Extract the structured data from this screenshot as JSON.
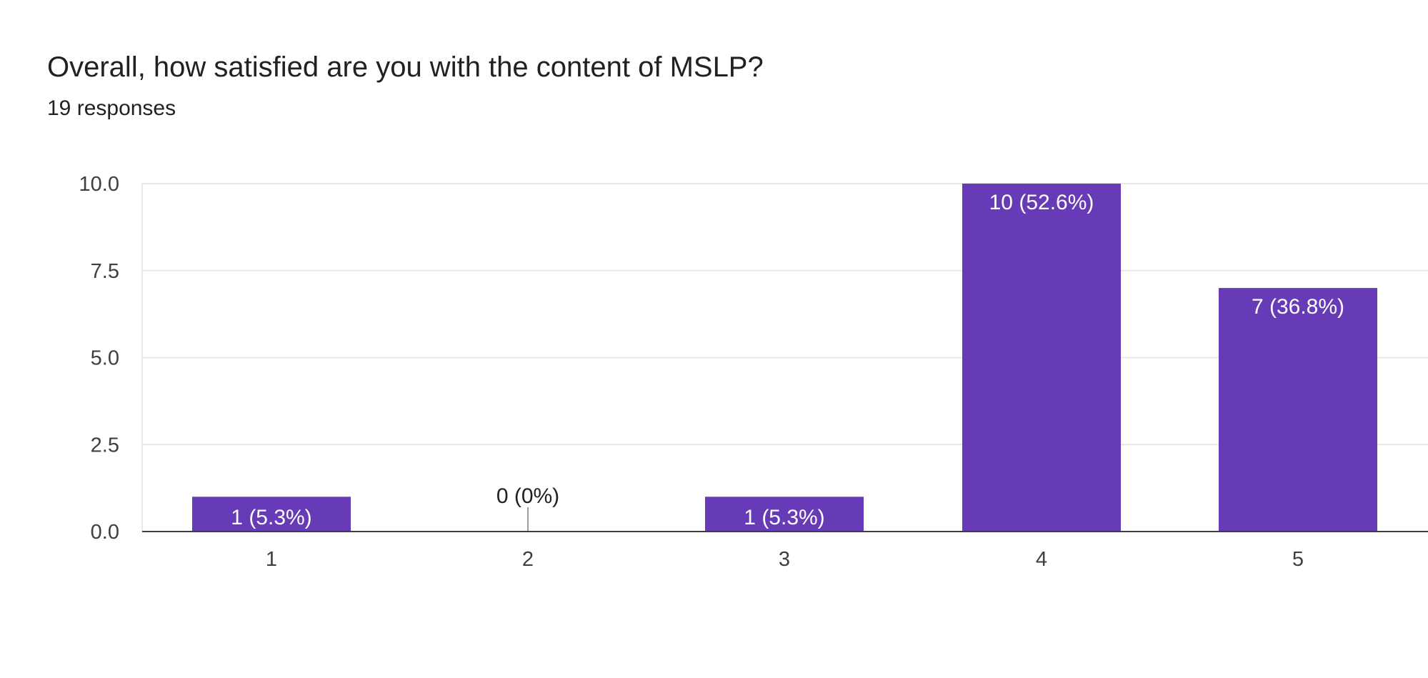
{
  "question": {
    "title": "Overall, how satisfied are you with the content of MSLP?",
    "responses": "19 responses"
  },
  "colors": {
    "bar": "#673ab7",
    "grid": "#e8e8e8",
    "axis": "#3c4043",
    "label_inside": "#ffffff",
    "label_outside": "#202124"
  },
  "chart_data": {
    "type": "bar",
    "categories": [
      "1",
      "2",
      "3",
      "4",
      "5"
    ],
    "values": [
      1,
      0,
      1,
      10,
      7
    ],
    "data_labels": [
      "1 (5.3%)",
      "0 (0%)",
      "1 (5.3%)",
      "10 (52.6%)",
      "7 (36.8%)"
    ],
    "ylim": [
      0,
      10
    ],
    "yticks": [
      0,
      2.5,
      5,
      7.5,
      10
    ],
    "ytick_labels": [
      "0.0",
      "2.5",
      "5.0",
      "7.5",
      "10.0"
    ],
    "grid": true,
    "legend": false
  }
}
